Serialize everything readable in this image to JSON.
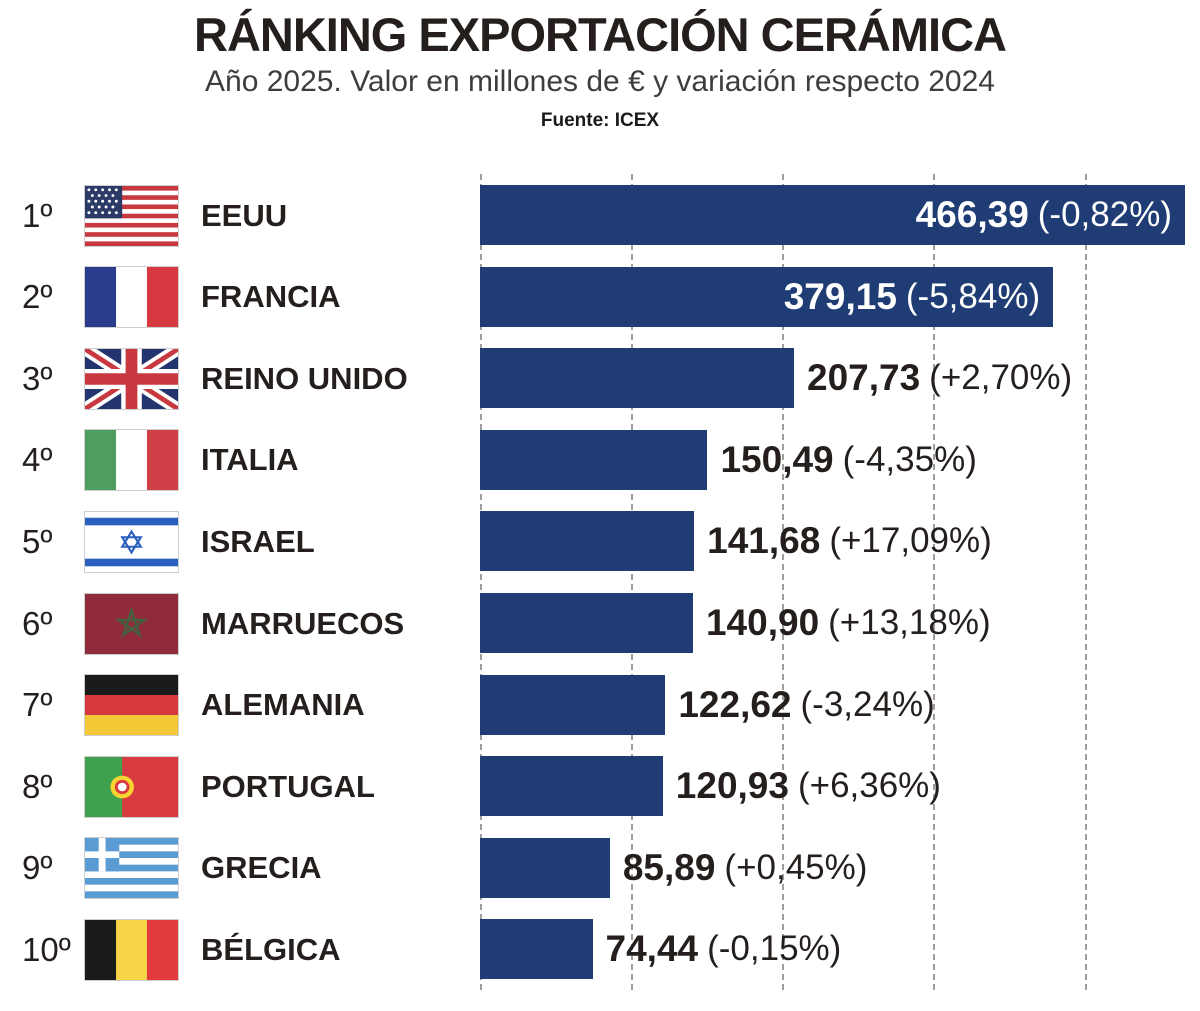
{
  "header": {
    "title": "RÁNKING EXPORTACIÓN CERÁMICA",
    "subtitle": "Año 2025. Valor en millones de € y variación respecto 2024",
    "source": "Fuente: ICEX"
  },
  "colors": {
    "bar": "#1f3d74",
    "text": "#241f1d",
    "grid": "#9e9e9e",
    "background": "#ffffff",
    "inside_label": "#ffffff"
  },
  "chart_data": {
    "type": "bar",
    "orientation": "horizontal",
    "title": "RÁNKING EXPORTACIÓN CERÁMICA",
    "subtitle": "Año 2025. Valor en millones de € y variación respecto 2024",
    "source": "Fuente: ICEX",
    "unit": "millones de €",
    "xlim": [
      0,
      466.39
    ],
    "gridlines": [
      0,
      100,
      200,
      300,
      400
    ],
    "grid_style": "dashed-vertical",
    "legend": "none",
    "categories": [
      "EEUU",
      "FRANCIA",
      "REINO UNIDO",
      "ITALIA",
      "ISRAEL",
      "MARRUECOS",
      "ALEMANIA",
      "PORTUGAL",
      "GRECIA",
      "BÉLGICA"
    ],
    "values": [
      466.39,
      379.15,
      207.73,
      150.49,
      141.68,
      140.9,
      122.62,
      120.93,
      85.89,
      74.44
    ],
    "variations_pct": [
      -0.82,
      -5.84,
      2.7,
      -4.35,
      17.09,
      13.18,
      -3.24,
      6.36,
      0.45,
      -0.15
    ],
    "rows": [
      {
        "rank": "1º",
        "country": "EEUU",
        "flag": "us",
        "value": 466.39,
        "value_label": "466,39",
        "variation_label": "(-0,82%)",
        "label_inside": true
      },
      {
        "rank": "2º",
        "country": "FRANCIA",
        "flag": "fr",
        "value": 379.15,
        "value_label": "379,15",
        "variation_label": "(-5,84%)",
        "label_inside": true
      },
      {
        "rank": "3º",
        "country": "REINO UNIDO",
        "flag": "gb",
        "value": 207.73,
        "value_label": "207,73",
        "variation_label": "(+2,70%)",
        "label_inside": false
      },
      {
        "rank": "4º",
        "country": "ITALIA",
        "flag": "it",
        "value": 150.49,
        "value_label": "150,49",
        "variation_label": "(-4,35%)",
        "label_inside": false
      },
      {
        "rank": "5º",
        "country": "ISRAEL",
        "flag": "il",
        "value": 141.68,
        "value_label": "141,68",
        "variation_label": "(+17,09%)",
        "label_inside": false
      },
      {
        "rank": "6º",
        "country": "MARRUECOS",
        "flag": "ma",
        "value": 140.9,
        "value_label": "140,90",
        "variation_label": "(+13,18%)",
        "label_inside": false
      },
      {
        "rank": "7º",
        "country": "ALEMANIA",
        "flag": "de",
        "value": 122.62,
        "value_label": "122,62",
        "variation_label": "(-3,24%)",
        "label_inside": false
      },
      {
        "rank": "8º",
        "country": "PORTUGAL",
        "flag": "pt",
        "value": 120.93,
        "value_label": "120,93",
        "variation_label": "(+6,36%)",
        "label_inside": false
      },
      {
        "rank": "9º",
        "country": "GRECIA",
        "flag": "gr",
        "value": 85.89,
        "value_label": "85,89",
        "variation_label": "(+0,45%)",
        "label_inside": false
      },
      {
        "rank": "10º",
        "country": "BÉLGICA",
        "flag": "be",
        "value": 74.44,
        "value_label": "74,44",
        "variation_label": "(-0,15%)",
        "label_inside": false
      }
    ]
  }
}
